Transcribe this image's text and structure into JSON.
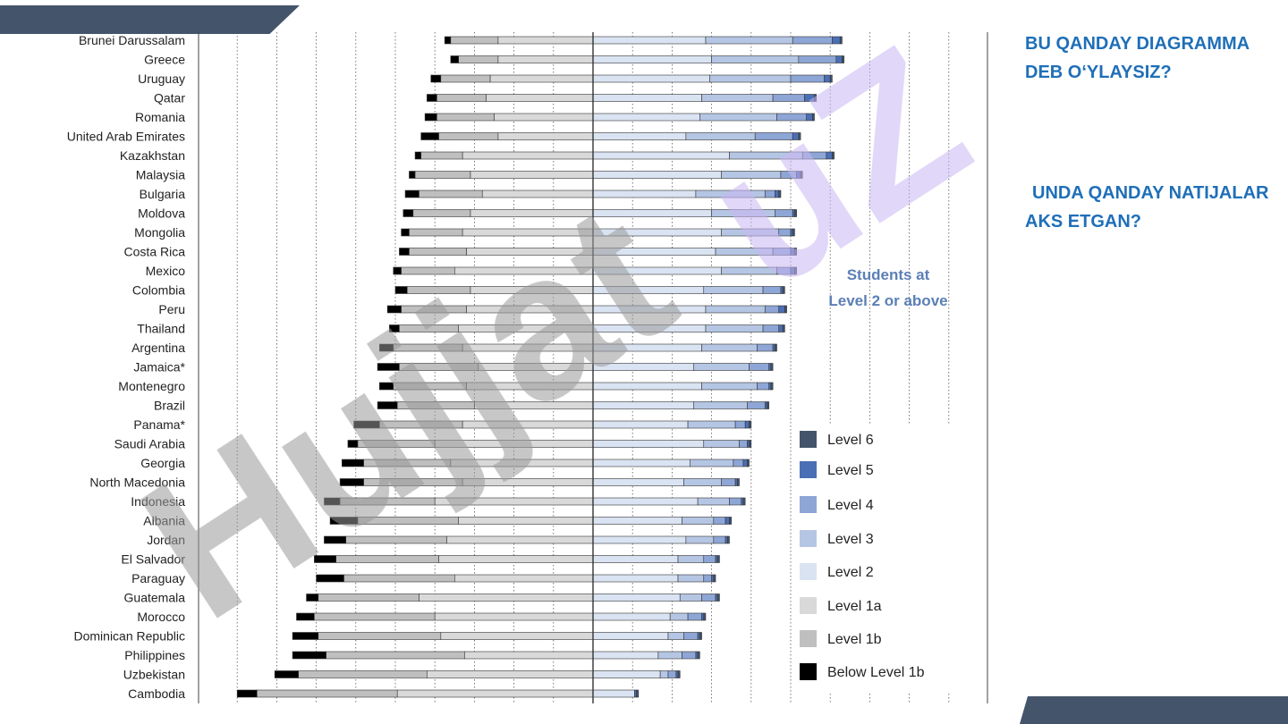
{
  "chart_data": {
    "type": "bar",
    "stacked": "diverging",
    "annotation": "Students at Level 2 or above",
    "legend": [
      {
        "name": "Level 6",
        "color": "#44546a"
      },
      {
        "name": "Level 5",
        "color": "#4a6fb5"
      },
      {
        "name": "Level 4",
        "color": "#8ea6d6"
      },
      {
        "name": "Level 3",
        "color": "#b5c6e4"
      },
      {
        "name": "Level 2",
        "color": "#dae3f2"
      },
      {
        "name": "Level 1a",
        "color": "#d9d9d9"
      },
      {
        "name": "Level 1b",
        "color": "#bfbfbf"
      },
      {
        "name": "Below Level 1b",
        "color": "#000000"
      }
    ],
    "legend_placement": "bottom-right",
    "grid": true,
    "xlim": [
      -90,
      100
    ],
    "categories": [
      "Brunei Darussalam",
      "Greece",
      "Uruguay",
      "Qatar",
      "Romania",
      "United Arab Emirates",
      "Kazakhstan",
      "Malaysia",
      "Bulgaria",
      "Moldova",
      "Mongolia",
      "Costa Rica",
      "Mexico",
      "Colombia",
      "Peru",
      "Thailand",
      "Argentina",
      "Jamaica*",
      "Montenegro",
      "Brazil",
      "Panama*",
      "Saudi Arabia",
      "Georgia",
      "North Macedonia",
      "Indonesia",
      "Albania",
      "Jordan",
      "El Salvador",
      "Paraguay",
      "Guatemala",
      "Morocco",
      "Dominican Republic",
      "Philippines",
      "Uzbekistan",
      "Cambodia"
    ],
    "series": [
      {
        "name": "Below Level 1b",
        "values": [
          1.5,
          2,
          2.5,
          2.5,
          3,
          4.5,
          1.5,
          1.5,
          3.5,
          2.5,
          2,
          2.5,
          2,
          3,
          3.5,
          2.5,
          3.5,
          5.5,
          3.5,
          5,
          6.5,
          2.5,
          5.5,
          6,
          4,
          7,
          5.5,
          5.5,
          7,
          3,
          4.5,
          6.5,
          8.5,
          6,
          5
        ]
      },
      {
        "name": "Level 1b",
        "values": [
          12,
          10,
          12.5,
          12.5,
          14.5,
          15,
          10.5,
          14,
          16,
          14.5,
          13.5,
          14.5,
          13.5,
          16,
          16.5,
          15,
          17.5,
          20,
          18.5,
          19.5,
          21,
          19.5,
          22,
          25,
          24,
          25.5,
          25.5,
          26,
          28,
          25.5,
          30.5,
          31,
          35,
          32.5,
          35.5
        ]
      },
      {
        "name": "Level 1a",
        "values": [
          24,
          24,
          26,
          27,
          25,
          24,
          33,
          31,
          28,
          31,
          33,
          32,
          35,
          31,
          32,
          34,
          33,
          29,
          32,
          30,
          33,
          40,
          36,
          33,
          40,
          34,
          37,
          39,
          35,
          44,
          40,
          38.5,
          32.5,
          42,
          49.5
        ]
      },
      {
        "name": "Level 2",
        "values": [
          28.5,
          30,
          29.5,
          27.5,
          27,
          23.5,
          34.5,
          32.5,
          26,
          30,
          32.5,
          31,
          32.5,
          28,
          28.5,
          28.5,
          27.5,
          25.5,
          27.5,
          25.5,
          24,
          28,
          24.5,
          23,
          26.5,
          22.5,
          23.5,
          21.5,
          21.5,
          22,
          19.5,
          19,
          16.5,
          17,
          10.5
        ]
      },
      {
        "name": "Level 3",
        "values": [
          22,
          22,
          20.5,
          18,
          19.5,
          17.5,
          18.5,
          15,
          17.5,
          16,
          14.5,
          14.5,
          14,
          15,
          15,
          14.5,
          14,
          14,
          14,
          13.5,
          12,
          9,
          11,
          9.5,
          8,
          8,
          7,
          6.5,
          6.5,
          5.5,
          4.5,
          4,
          6,
          2,
          0
        ]
      },
      {
        "name": "Level 4",
        "values": [
          10,
          9.5,
          8.5,
          8,
          7.5,
          9.5,
          6,
          4,
          2.5,
          4.5,
          3,
          4.5,
          3.5,
          4.5,
          3.5,
          4,
          4,
          5,
          3,
          4.5,
          2.5,
          2,
          2.5,
          3.5,
          3,
          3,
          3,
          3,
          2,
          3.5,
          3.5,
          3.5,
          3.5,
          2,
          0
        ]
      },
      {
        "name": "Level 5",
        "values": [
          2,
          1.5,
          1.5,
          2.5,
          1.5,
          1.5,
          1.5,
          1,
          1,
          0.5,
          0.5,
          1,
          1,
          0.5,
          1.5,
          1,
          0.5,
          0.5,
          0.5,
          0.5,
          1,
          0.5,
          1,
          0.5,
          0.5,
          1,
          0.5,
          0.5,
          0.5,
          0.5,
          0.5,
          0.5,
          0.5,
          0.5,
          0.5
        ]
      },
      {
        "name": "Level 6",
        "values": [
          0.5,
          0.5,
          0.5,
          0.5,
          0.5,
          0.5,
          0.5,
          0.5,
          0.5,
          0.5,
          0.5,
          0.5,
          0.5,
          0.5,
          0.5,
          0.5,
          0.5,
          0.5,
          0.5,
          0.5,
          0.5,
          0.5,
          0.5,
          0.5,
          0.5,
          0.5,
          0.5,
          0.5,
          0.5,
          0.5,
          0.5,
          0.5,
          0.5,
          0.5,
          0.5
        ]
      }
    ]
  },
  "questions": {
    "q1": "BU QANDAY DIAGRAMMA DEB O‘YLAYSIZ?",
    "q2": "UNDA QANDAY NATIJALAR AKS ETGAN?"
  },
  "watermark": {
    "text": "Hujjat.uz",
    "color_main": "#9a9a9a",
    "color_accent": "#c9b6f2"
  }
}
